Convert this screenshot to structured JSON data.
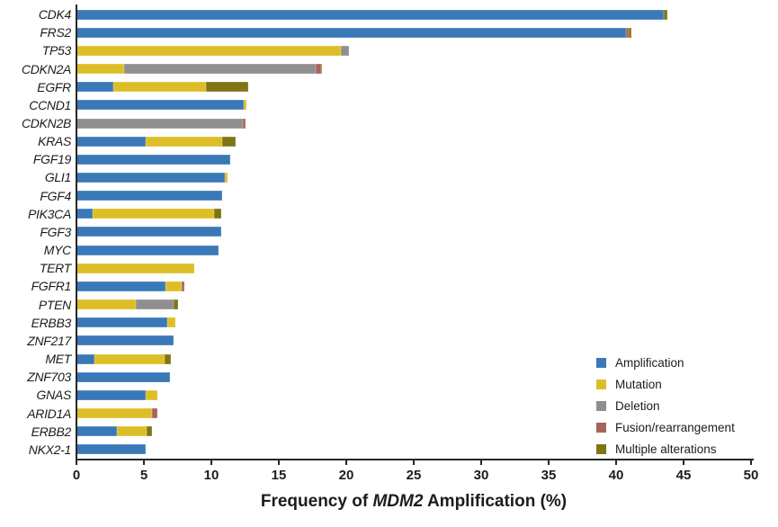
{
  "chart_data": {
    "type": "bar",
    "orientation": "horizontal_stacked",
    "title": "Frequency of MDM2 Amplification (%)",
    "title_parts": {
      "prefix": "Frequency of ",
      "gene": "MDM2",
      "suffix": " Amplification (%)"
    },
    "xlabel": "Frequency of MDM2 Amplification (%)",
    "xlim": [
      0,
      50
    ],
    "x_ticks": [
      0,
      5,
      10,
      15,
      20,
      25,
      30,
      35,
      40,
      45,
      50
    ],
    "grid": false,
    "legend_position": "lower-right-inside",
    "categories": [
      "CDK4",
      "FRS2",
      "TP53",
      "CDKN2A",
      "EGFR",
      "CCND1",
      "CDKN2B",
      "KRAS",
      "FGF19",
      "GLI1",
      "FGF4",
      "PIK3CA",
      "FGF3",
      "MYC",
      "TERT",
      "FGFR1",
      "PTEN",
      "ERBB3",
      "ZNF217",
      "MET",
      "ZNF703",
      "GNAS",
      "ARID1A",
      "ERBB2",
      "NKX2-1"
    ],
    "series": [
      {
        "name": "Amplification",
        "color": "#3A78B8",
        "values": [
          43.5,
          40.7,
          0,
          0,
          2.7,
          12.4,
          0,
          5.1,
          11.4,
          11.0,
          10.8,
          1.2,
          10.7,
          10.5,
          0,
          6.6,
          0,
          6.7,
          7.2,
          1.3,
          6.9,
          5.1,
          0,
          3.0,
          5.1
        ]
      },
      {
        "name": "Mutation",
        "color": "#DEBE27",
        "values": [
          0,
          0,
          19.6,
          3.5,
          6.9,
          0.2,
          0,
          5.7,
          0,
          0.2,
          0,
          9.0,
          0,
          0,
          8.7,
          1.2,
          4.4,
          0.6,
          0,
          5.2,
          0,
          0.9,
          5.6,
          2.2,
          0
        ]
      },
      {
        "name": "Deletion",
        "color": "#8F8F8F",
        "values": [
          0,
          0,
          0.6,
          14.2,
          0,
          0,
          12.3,
          0,
          0,
          0,
          0,
          0,
          0,
          0,
          0,
          0,
          2.8,
          0,
          0,
          0,
          0,
          0,
          0,
          0,
          0
        ]
      },
      {
        "name": "Fusion/rearrangement",
        "color": "#A8625C",
        "values": [
          0,
          0.2,
          0,
          0.4,
          0,
          0,
          0.2,
          0,
          0,
          0,
          0,
          0,
          0,
          0,
          0,
          0.2,
          0,
          0,
          0,
          0,
          0,
          0,
          0.4,
          0,
          0
        ]
      },
      {
        "name": "Multiple alterations",
        "color": "#7E7515",
        "values": [
          0.3,
          0.2,
          0,
          0.1,
          3.1,
          0,
          0,
          1.0,
          0,
          0,
          0,
          0.5,
          0,
          0,
          0,
          0,
          0.3,
          0,
          0,
          0.5,
          0,
          0,
          0,
          0.4,
          0
        ]
      }
    ],
    "legend": {
      "entries": [
        {
          "label": "Amplification",
          "color": "#3A78B8"
        },
        {
          "label": "Mutation",
          "color": "#DEBE27"
        },
        {
          "label": "Deletion",
          "color": "#8F8F8F"
        },
        {
          "label": "Fusion/rearrangement",
          "color": "#A8625C"
        },
        {
          "label": "Multiple alterations",
          "color": "#7E7515"
        }
      ]
    },
    "axis_color": "#262626"
  }
}
